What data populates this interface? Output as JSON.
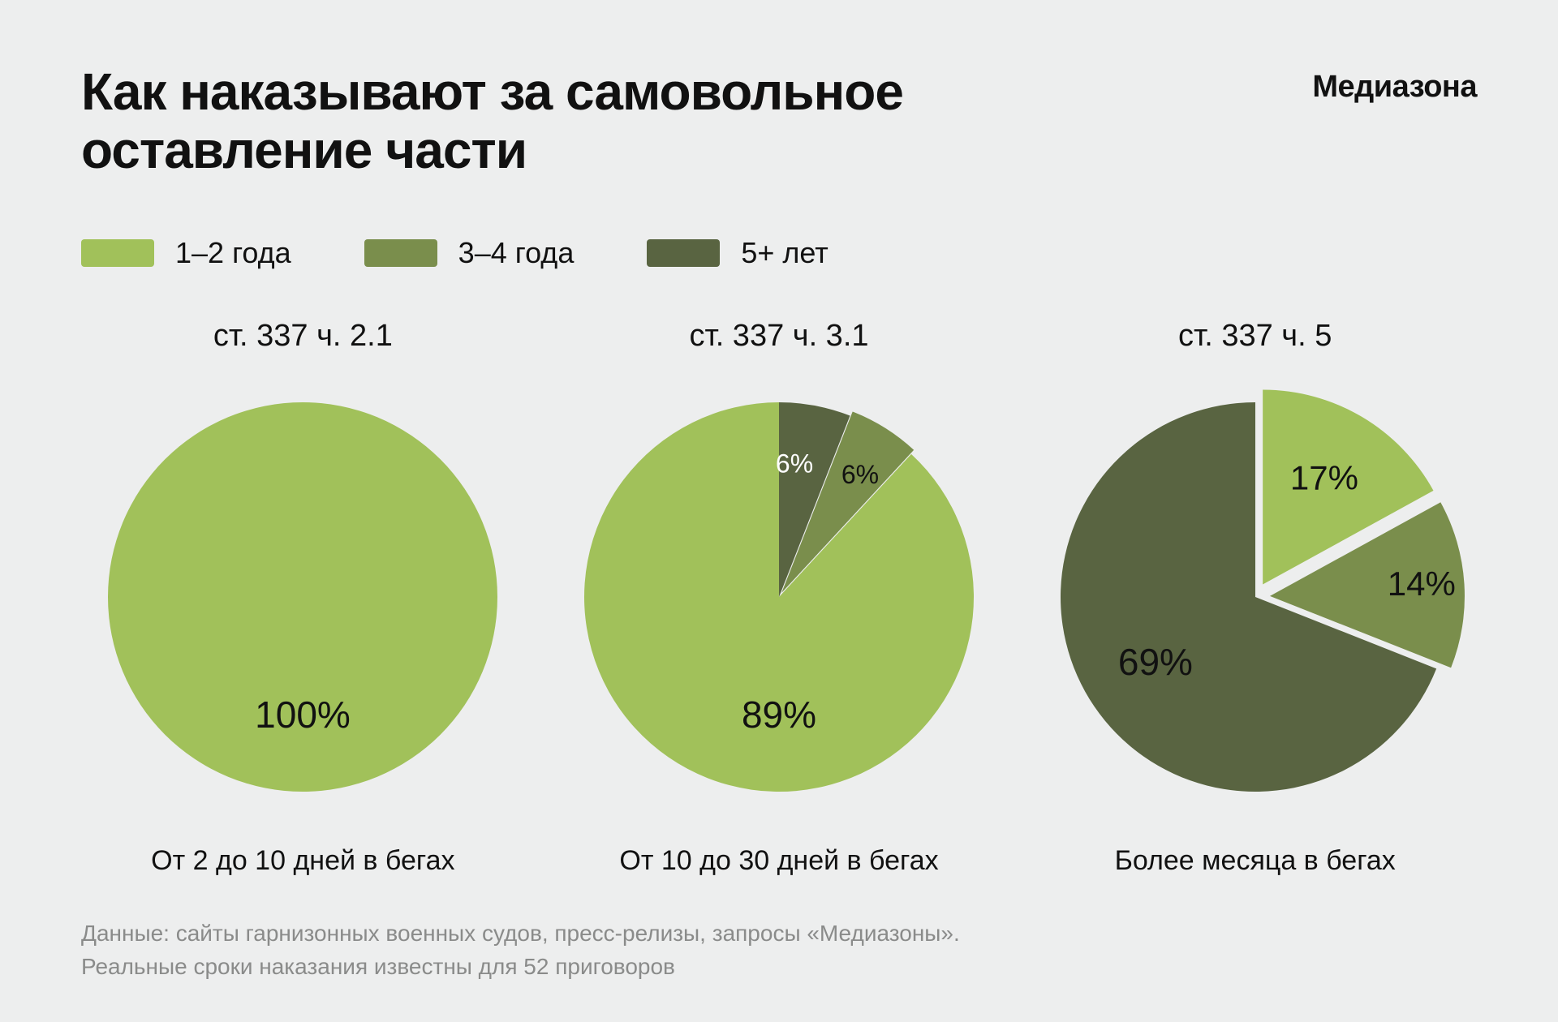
{
  "title": "Как наказывают за самовольное оставление части",
  "brand": "Медиазона",
  "background_color": "#edeeee",
  "text_color": "#111111",
  "footer_color": "#8a8b8a",
  "legend": [
    {
      "label": "1–2 года",
      "color": "#a1c15a"
    },
    {
      "label": "3–4 года",
      "color": "#7a8e4c"
    },
    {
      "label": "5+ лет",
      "color": "#596441"
    }
  ],
  "charts": [
    {
      "title": "ст. 337 ч. 2.1",
      "caption": "От 2 до 10 дней в бегах",
      "radius": 240,
      "start_angle_deg": -90,
      "slices": [
        {
          "value": 100,
          "color": "#a1c15a",
          "label": "100%",
          "label_pos": "bottom",
          "label_color": "#111111",
          "label_fontsize": 46
        }
      ]
    },
    {
      "title": "ст. 337 ч. 3.1",
      "caption": "От 10 до 30 дней в бегах",
      "radius": 240,
      "start_angle_deg": -90,
      "slices": [
        {
          "value": 6,
          "color": "#596441",
          "label": "6%",
          "label_pos": "top-left",
          "label_color": "#ffffff",
          "label_fontsize": 32
        },
        {
          "value": 6,
          "color": "#7a8e4c",
          "label": "6%",
          "label_pos": "top-right",
          "label_color": "#111111",
          "label_fontsize": 32,
          "explode": 6
        },
        {
          "value": 89,
          "color": "#a1c15a",
          "label": "89%",
          "label_pos": "bottom",
          "label_color": "#111111",
          "label_fontsize": 46
        }
      ]
    },
    {
      "title": "ст. 337 ч. 5",
      "caption": "Более месяца в бегах",
      "radius": 240,
      "start_angle_deg": -90,
      "slices": [
        {
          "value": 17,
          "color": "#a1c15a",
          "label": "17%",
          "label_pos": "auto",
          "label_color": "#111111",
          "label_fontsize": 42,
          "explode": 18
        },
        {
          "value": 14,
          "color": "#7a8e4c",
          "label": "14%",
          "label_pos": "auto",
          "label_color": "#111111",
          "label_fontsize": 42,
          "explode": 18,
          "label_radius_factor": 0.78
        },
        {
          "value": 69,
          "color": "#596441",
          "label": "69%",
          "label_pos": "auto",
          "label_color": "#111111",
          "label_fontsize": 46,
          "label_radius_factor": 0.62
        }
      ]
    }
  ],
  "footer_lines": [
    "Данные: сайты гарнизонных военных судов, пресс-релизы, запросы «Медиазоны».",
    "Реальные сроки наказания известны для 52 приговоров"
  ]
}
